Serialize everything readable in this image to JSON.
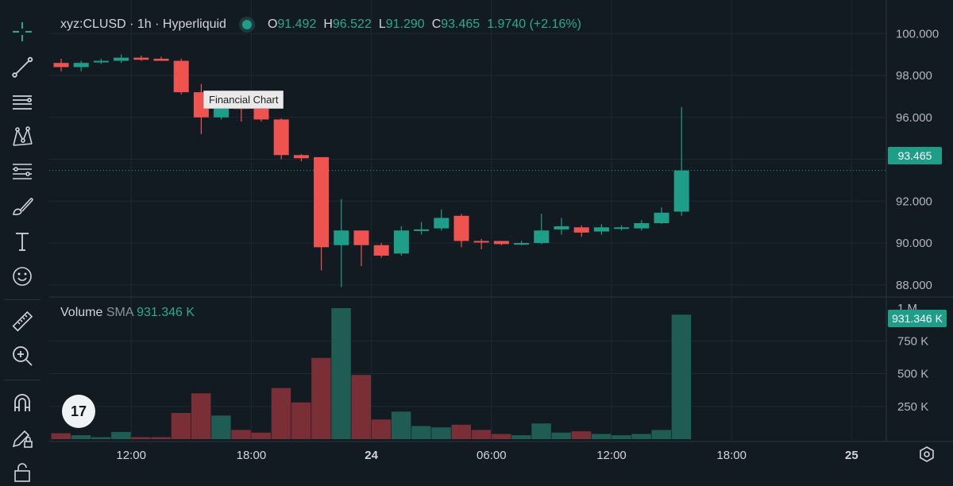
{
  "legend": {
    "symbol": "xyz:CLUSD · 1h · Hyperliquid",
    "ohlc": [
      {
        "key": "O",
        "value": "91.492"
      },
      {
        "key": "H",
        "value": "96.522"
      },
      {
        "key": "L",
        "value": "91.290"
      },
      {
        "key": "C",
        "value": "93.465"
      }
    ],
    "change": "1.9740 (+2.16%)"
  },
  "volume_legend": {
    "name": "Volume",
    "sma_label": "SMA",
    "sma_value": "931.346 K"
  },
  "tooltip": "Financial Chart",
  "last_price_label": "93.465",
  "volume_sma_tag": "931.346 K",
  "logo_text": "17",
  "colors": {
    "up": "#1e9e89",
    "down": "#ef5350",
    "vol_up": "#1f5c54",
    "vol_down": "#7a2e35",
    "background": "#131b22"
  },
  "chart_data": {
    "type": "candlestick",
    "price_axis": {
      "ticks": [
        "100.000",
        "98.000",
        "96.000",
        "94.000",
        "92.000",
        "90.000",
        "88.000"
      ],
      "range": [
        87.5,
        101.3
      ]
    },
    "volume_axis": {
      "ticks": [
        "1 M",
        "750 K",
        "500 K",
        "250 K"
      ],
      "range": [
        0,
        1000000
      ]
    },
    "time_axis": [
      {
        "label": "12:00",
        "index": 3.5,
        "bold": false
      },
      {
        "label": "18:00",
        "index": 9.5,
        "bold": false
      },
      {
        "label": "24",
        "index": 15.5,
        "bold": true
      },
      {
        "label": "06:00",
        "index": 21.5,
        "bold": false
      },
      {
        "label": "12:00",
        "index": 27.5,
        "bold": false
      },
      {
        "label": "18:00",
        "index": 33.5,
        "bold": false
      },
      {
        "label": "25",
        "index": 39.5,
        "bold": true
      }
    ],
    "candles": [
      {
        "o": 98.6,
        "h": 98.8,
        "l": 98.2,
        "c": 98.4,
        "v": 45000
      },
      {
        "o": 98.4,
        "h": 98.7,
        "l": 98.2,
        "c": 98.6,
        "v": 30000
      },
      {
        "o": 98.65,
        "h": 98.8,
        "l": 98.55,
        "c": 98.7,
        "v": 15000
      },
      {
        "o": 98.7,
        "h": 99.0,
        "l": 98.6,
        "c": 98.85,
        "v": 55000
      },
      {
        "o": 98.85,
        "h": 98.95,
        "l": 98.7,
        "c": 98.75,
        "v": 15000
      },
      {
        "o": 98.8,
        "h": 98.9,
        "l": 98.7,
        "c": 98.7,
        "v": 15000
      },
      {
        "o": 98.7,
        "h": 98.8,
        "l": 97.1,
        "c": 97.2,
        "v": 200000
      },
      {
        "o": 97.2,
        "h": 97.6,
        "l": 95.2,
        "c": 96.0,
        "v": 350000
      },
      {
        "o": 96.0,
        "h": 97.2,
        "l": 95.9,
        "c": 96.6,
        "v": 180000
      },
      {
        "o": 96.6,
        "h": 96.7,
        "l": 95.8,
        "c": 96.4,
        "v": 70000
      },
      {
        "o": 96.6,
        "h": 96.7,
        "l": 95.8,
        "c": 95.9,
        "v": 50000
      },
      {
        "o": 95.9,
        "h": 95.95,
        "l": 94.0,
        "c": 94.2,
        "v": 390000
      },
      {
        "o": 94.2,
        "h": 94.25,
        "l": 93.9,
        "c": 94.05,
        "v": 280000
      },
      {
        "o": 94.1,
        "h": 94.1,
        "l": 88.7,
        "c": 89.8,
        "v": 620000
      },
      {
        "o": 89.9,
        "h": 92.1,
        "l": 87.9,
        "c": 90.6,
        "v": 1000000
      },
      {
        "o": 90.6,
        "h": 90.6,
        "l": 88.9,
        "c": 89.9,
        "v": 490000
      },
      {
        "o": 89.9,
        "h": 90.0,
        "l": 89.3,
        "c": 89.4,
        "v": 150000
      },
      {
        "o": 89.5,
        "h": 90.8,
        "l": 89.4,
        "c": 90.6,
        "v": 210000
      },
      {
        "o": 90.6,
        "h": 91.0,
        "l": 90.4,
        "c": 90.65,
        "v": 100000
      },
      {
        "o": 90.7,
        "h": 91.6,
        "l": 90.6,
        "c": 91.2,
        "v": 90000
      },
      {
        "o": 91.3,
        "h": 91.4,
        "l": 89.8,
        "c": 90.1,
        "v": 110000
      },
      {
        "o": 90.1,
        "h": 90.2,
        "l": 89.7,
        "c": 90.05,
        "v": 70000
      },
      {
        "o": 90.1,
        "h": 90.1,
        "l": 89.9,
        "c": 89.95,
        "v": 40000
      },
      {
        "o": 89.95,
        "h": 90.1,
        "l": 89.9,
        "c": 90.0,
        "v": 30000
      },
      {
        "o": 90.0,
        "h": 91.4,
        "l": 89.95,
        "c": 90.6,
        "v": 120000
      },
      {
        "o": 90.65,
        "h": 91.2,
        "l": 90.4,
        "c": 90.8,
        "v": 50000
      },
      {
        "o": 90.75,
        "h": 90.85,
        "l": 90.3,
        "c": 90.5,
        "v": 60000
      },
      {
        "o": 90.55,
        "h": 90.9,
        "l": 90.4,
        "c": 90.75,
        "v": 40000
      },
      {
        "o": 90.7,
        "h": 90.85,
        "l": 90.6,
        "c": 90.75,
        "v": 30000
      },
      {
        "o": 90.7,
        "h": 91.1,
        "l": 90.6,
        "c": 90.95,
        "v": 40000
      },
      {
        "o": 90.95,
        "h": 91.7,
        "l": 90.9,
        "c": 91.45,
        "v": 70000
      },
      {
        "o": 91.5,
        "h": 96.5,
        "l": 91.3,
        "c": 93.465,
        "v": 950000
      }
    ]
  }
}
